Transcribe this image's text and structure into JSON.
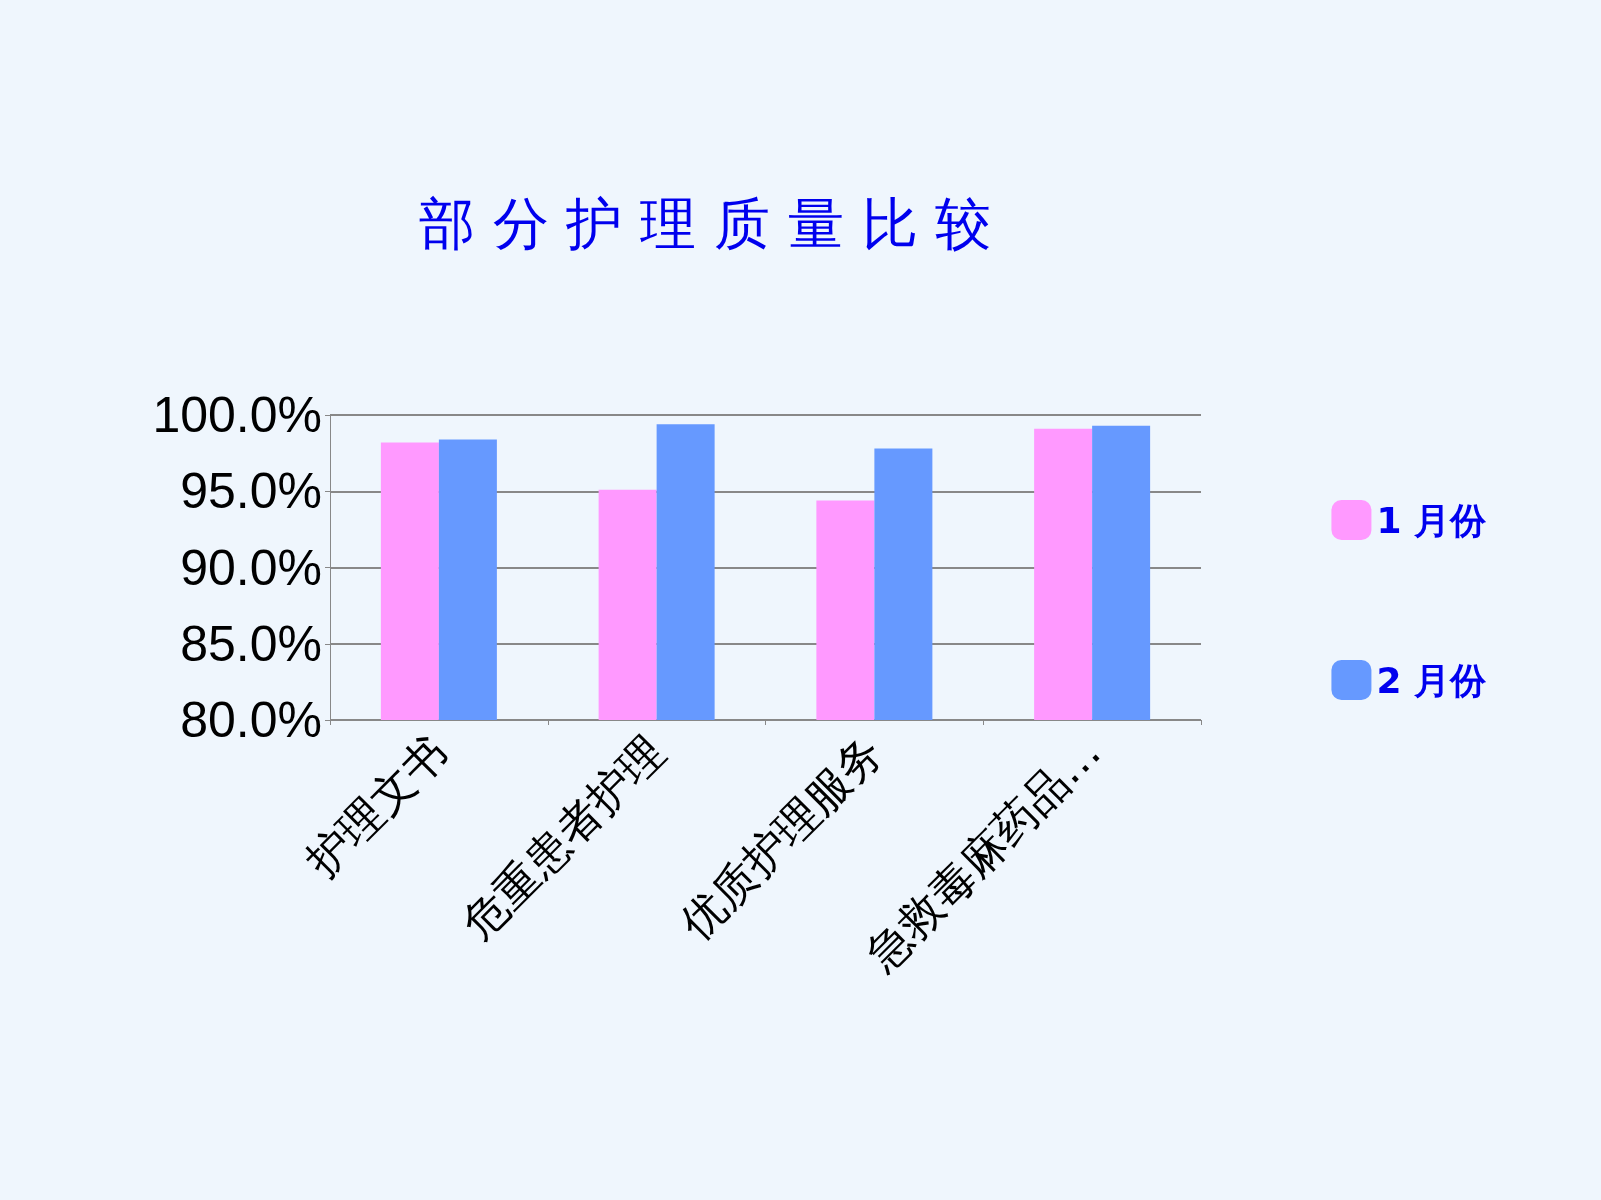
{
  "chart_data": {
    "type": "bar",
    "title": "部 分 护 理 质 量 比 较",
    "categories": [
      "护理文书",
      "危重患者护理",
      "优质护理服务",
      "急救毒麻药品…"
    ],
    "series": [
      {
        "name": "1 月份",
        "color": "#ff99ff",
        "values": [
          98.2,
          95.1,
          94.4,
          99.1
        ]
      },
      {
        "name": "2 月份",
        "color": "#6699ff",
        "values": [
          98.4,
          99.4,
          97.8,
          99.3
        ]
      }
    ],
    "ylim": [
      80,
      100
    ],
    "yticks": [
      {
        "value": 80,
        "label": "80.0%"
      },
      {
        "value": 85,
        "label": "85.0%"
      },
      {
        "value": 90,
        "label": "90.0%"
      },
      {
        "value": 95,
        "label": "95.0%"
      },
      {
        "value": 100,
        "label": "100.0%"
      }
    ],
    "grid": "y",
    "legend": "right"
  }
}
